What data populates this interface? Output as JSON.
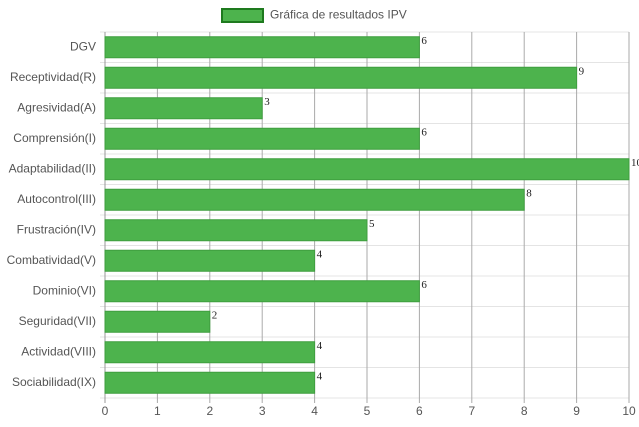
{
  "chart_data": {
    "type": "bar",
    "orientation": "horizontal",
    "categories": [
      "DGV",
      "Receptividad(R)",
      "Agresividad(A)",
      "Comprensión(I)",
      "Adaptabilidad(II)",
      "Autocontrol(III)",
      "Frustración(IV)",
      "Combatividad(V)",
      "Dominio(VI)",
      "Seguridad(VII)",
      "Actividad(VIII)",
      "Sociabilidad(IX)"
    ],
    "series": [
      {
        "name": "Gráfica de resultados IPV",
        "color": "#4db34d",
        "values": [
          6,
          9,
          3,
          6,
          10,
          8,
          5,
          4,
          6,
          2,
          4,
          4
        ]
      }
    ],
    "xlim": [
      0,
      10
    ],
    "xticks": [
      0,
      1,
      2,
      3,
      4,
      5,
      6,
      7,
      8,
      9,
      10
    ],
    "grid": true,
    "legend": "top"
  }
}
